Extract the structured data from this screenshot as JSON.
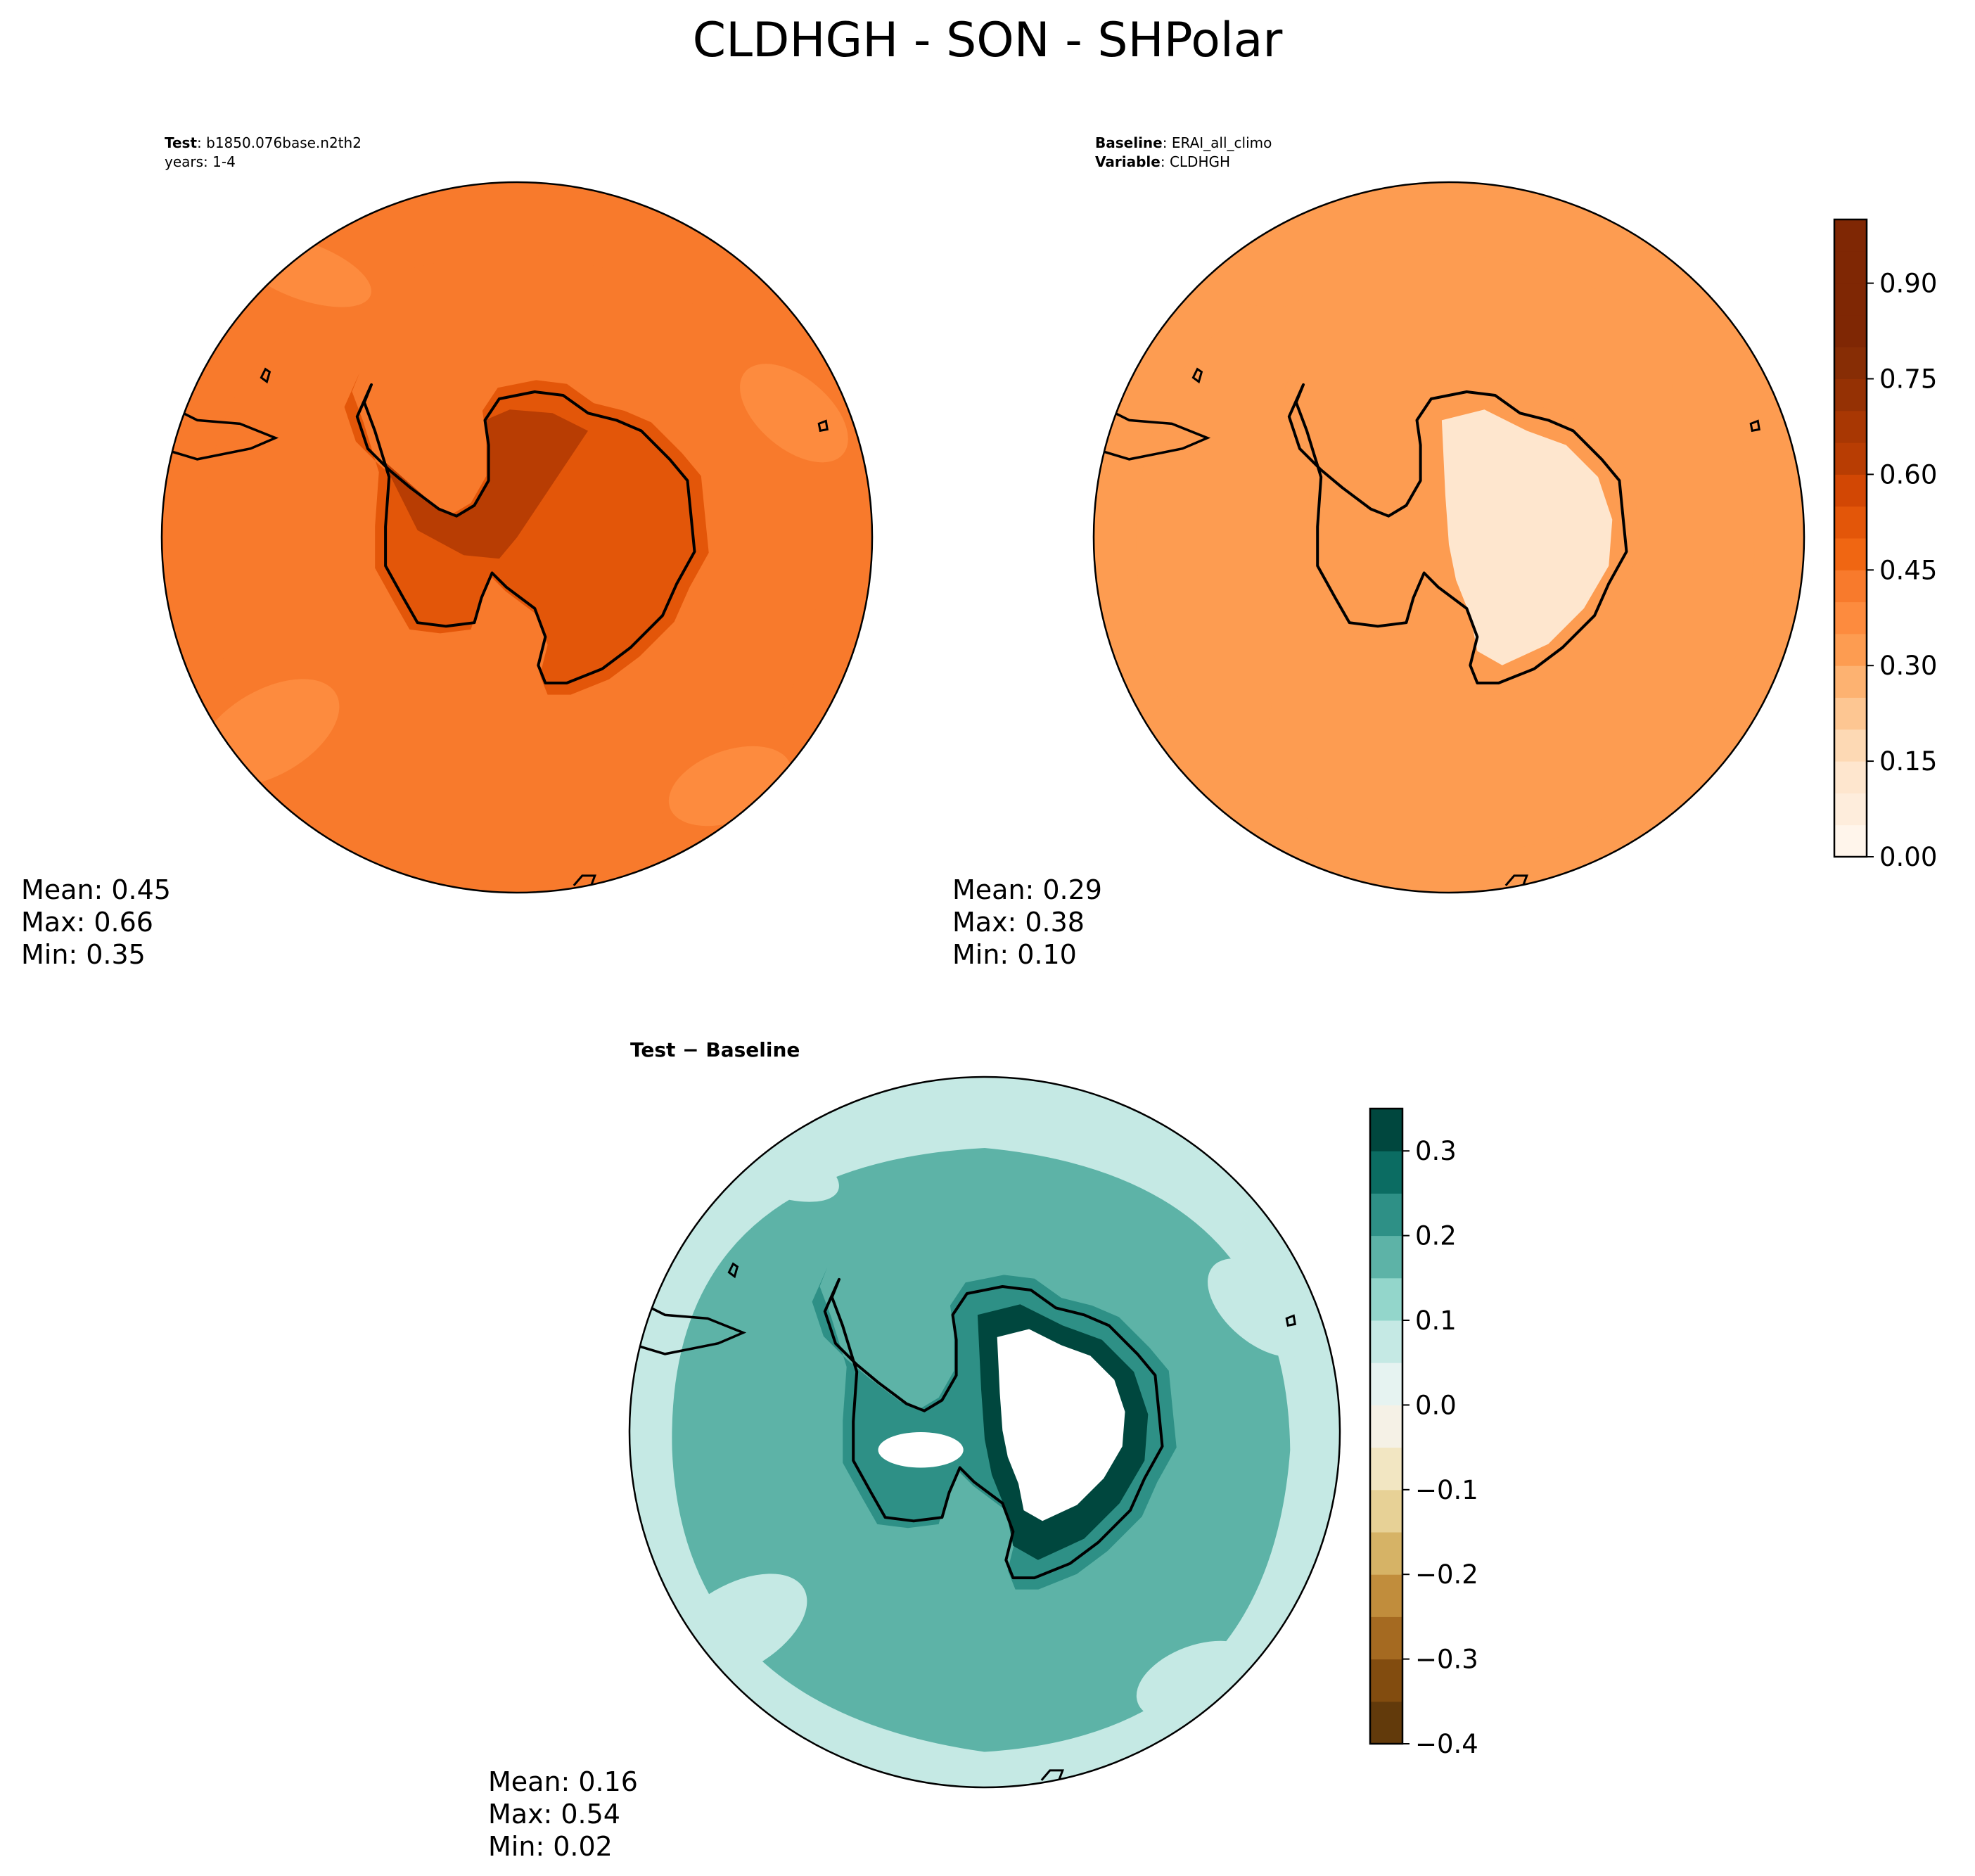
{
  "chart_data": {
    "type": "polar contour map",
    "title": "CLDHGH - SON - SHPolar",
    "panels": [
      {
        "id": "test",
        "header": [
          {
            "label": "Test",
            "sep": ": ",
            "value": "b1850.076base.n2th2"
          },
          {
            "label": "",
            "sep": "",
            "value": "years: 1-4"
          }
        ],
        "mean": "0.45",
        "max": "0.66",
        "min": "0.35",
        "field": {
          "background": 0.4,
          "ice_sheet": 0.52,
          "ocean_band": 0.43,
          "hot": 0.63,
          "edge": 0.35
        }
      },
      {
        "id": "baseline",
        "header": [
          {
            "label": "Baseline",
            "sep": ": ",
            "value": "ERAI_all_climo"
          },
          {
            "label": "Variable",
            "sep": ": ",
            "value": "CLDHGH"
          }
        ],
        "mean": "0.29",
        "max": "0.38",
        "min": "0.10",
        "field": {
          "background": 0.31,
          "ice_sheet": 0.33,
          "ocean_band": 0.31,
          "hot": 0.12,
          "edge": 0.3
        }
      },
      {
        "id": "diff",
        "header": [
          {
            "label": "Test − Baseline",
            "sep": "",
            "value": ""
          }
        ],
        "mean": "0.16",
        "max": "0.54",
        "min": "0.02",
        "field": {
          "background": 0.09,
          "ice_sheet": 0.24,
          "ocean_band": 0.16,
          "hot": 0.4,
          "edge": 0.07
        }
      }
    ],
    "colorbars": [
      {
        "id": "main",
        "colormap": "Oranges",
        "levels": [
          0.0,
          0.05,
          0.1,
          0.15,
          0.2,
          0.25,
          0.3,
          0.35,
          0.4,
          0.45,
          0.5,
          0.55,
          0.6,
          0.65,
          0.7,
          0.75,
          0.8,
          0.85,
          0.9,
          0.95,
          1.0
        ],
        "colors": [
          "#fff5eb",
          "#feeddc",
          "#fee6ce",
          "#fdd9b4",
          "#fdc692",
          "#fdb271",
          "#fd9c51",
          "#fd8b3e",
          "#f87a2c",
          "#f06612",
          "#e35609",
          "#d24704",
          "#b83d03",
          "#a83703",
          "#953104",
          "#872d05",
          "#7f2704",
          "#7f2704",
          "#7f2704",
          "#7f2704"
        ],
        "ticks": [
          0.0,
          0.15,
          0.3,
          0.45,
          0.6,
          0.75,
          0.9
        ],
        "tick_labels": [
          "0.00",
          "0.15",
          "0.30",
          "0.45",
          "0.60",
          "0.75",
          "0.90"
        ]
      },
      {
        "id": "diff",
        "colormap": "BrBG",
        "levels": [
          -0.4,
          -0.35,
          -0.3,
          -0.25,
          -0.2,
          -0.15,
          -0.1,
          -0.05,
          0.0,
          0.05,
          0.1,
          0.15,
          0.2,
          0.25,
          0.3,
          0.35
        ],
        "colors": [
          "#623a0b",
          "#824c0f",
          "#a56a21",
          "#c18d3c",
          "#d6b366",
          "#e7d196",
          "#f2e6c2",
          "#f5f1e6",
          "#e6f3f1",
          "#c5e9e4",
          "#93d6cb",
          "#5db3a7",
          "#2e9086",
          "#0b6c62",
          "#00473e"
        ],
        "ticks": [
          -0.4,
          -0.3,
          -0.2,
          -0.1,
          0.0,
          0.1,
          0.2,
          0.3
        ],
        "tick_labels": [
          "−0.4",
          "−0.3",
          "−0.2",
          "−0.1",
          "0.0",
          "0.1",
          "0.2",
          "0.3"
        ]
      }
    ],
    "stat_labels": {
      "mean": "Mean:",
      "max": "Max:",
      "min": "Min:"
    }
  }
}
